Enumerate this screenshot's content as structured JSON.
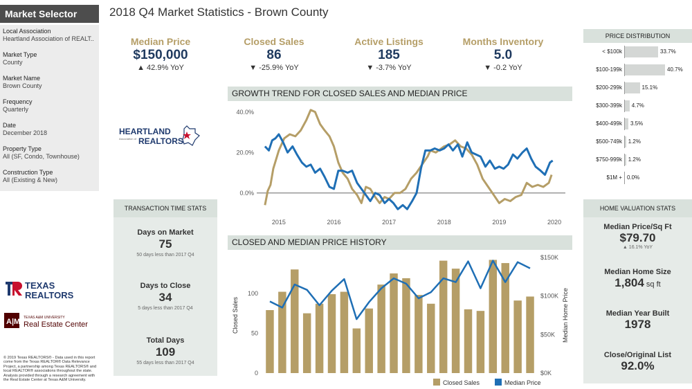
{
  "sidebar": {
    "title": "Market Selector",
    "filters": [
      {
        "label": "Local Association",
        "value": "Heartland Association of REALT.."
      },
      {
        "label": "Market Type",
        "value": "County"
      },
      {
        "label": "Market Name",
        "value": "Brown County"
      },
      {
        "label": "Frequency",
        "value": "Quarterly"
      },
      {
        "label": "Date",
        "value": "December 2018"
      },
      {
        "label": "Property Type",
        "value": "All (SF, Condo, Townhouse)"
      },
      {
        "label": "Construction Type",
        "value": "All (Existing & New)"
      }
    ],
    "heartland_logo": "HEARTLAND REALTORS",
    "texas_realtors_logo": "TEXAS REALTORS",
    "rec_logo_top": "TEXAS A&M UNIVERSITY",
    "rec_logo_main": "Real Estate Center",
    "footnote": "© 2019 Texas REALTORS® - Data used in this report come from the Texas REALTOR® Data Relevance Project, a partnership among Texas REALTORS® and local REALTOR® associations throughout the state. Analysis provided through a research agreement with the Real Estate Center at Texas A&M University."
  },
  "header": {
    "title": "2018 Q4 Market Statistics - Brown County"
  },
  "kpis": [
    {
      "label": "Median Price",
      "value": "$150,000",
      "change": "▲ 42.9% YoY"
    },
    {
      "label": "Closed Sales",
      "value": "86",
      "change": "▼ -25.9% YoY"
    },
    {
      "label": "Active Listings",
      "value": "185",
      "change": "▼ -3.7% YoY"
    },
    {
      "label": "Months Inventory",
      "value": "5.0",
      "change": "▼ -0.2 YoY"
    }
  ],
  "price_distribution": {
    "title": "PRICE DISTRIBUTION",
    "rows": [
      {
        "label": "< $100k",
        "pct": 33.7,
        "text": "33.7%"
      },
      {
        "label": "$100-199k",
        "pct": 40.7,
        "text": "40.7%"
      },
      {
        "label": "$200-299k",
        "pct": 15.1,
        "text": "15.1%"
      },
      {
        "label": "$300-399k",
        "pct": 4.7,
        "text": "4.7%"
      },
      {
        "label": "$400-499k",
        "pct": 3.5,
        "text": "3.5%"
      },
      {
        "label": "$500-749k",
        "pct": 1.2,
        "text": "1.2%"
      },
      {
        "label": "$750-999k",
        "pct": 1.2,
        "text": "1.2%"
      },
      {
        "label": "$1M +",
        "pct": 0.0,
        "text": "0.0%"
      }
    ]
  },
  "transaction_time": {
    "title": "TRANSACTION TIME STATS",
    "items": [
      {
        "label": "Days on Market",
        "value": "75",
        "sub": "50 days less than 2017 Q4"
      },
      {
        "label": "Days to Close",
        "value": "34",
        "sub": "5 days less than 2017 Q4"
      },
      {
        "label": "Total Days",
        "value": "109",
        "sub": "55 days less than 2017 Q4"
      }
    ]
  },
  "home_valuation": {
    "title": "HOME VALUATION STATS",
    "items": [
      {
        "label": "Median Price/Sq Ft",
        "value": "$79.70",
        "unit": "",
        "sub": "▲ 16.1% YoY"
      },
      {
        "label": "Median Home Size",
        "value": "1,804",
        "unit": " sq ft",
        "sub": ""
      },
      {
        "label": "Median Year Built",
        "value": "1978",
        "unit": "",
        "sub": ""
      },
      {
        "label": "Close/Original List",
        "value": "92.0%",
        "unit": "",
        "sub": ""
      }
    ]
  },
  "colors": {
    "gold": "#b59e67",
    "blue": "#1f6fb5",
    "navy": "#1f3a5f",
    "header_bg": "#d9e1dc"
  },
  "chart_data": [
    {
      "type": "line",
      "title": "GROWTH TREND FOR CLOSED SALES AND MEDIAN PRICE",
      "xlabel": "",
      "ylabel": "",
      "x_ticks": [
        "2015",
        "2016",
        "2017",
        "2018",
        "2019",
        "2020"
      ],
      "y_ticks": [
        "0.0%",
        "20.0%",
        "40.0%"
      ],
      "ylim": [
        -10,
        42
      ],
      "xlim": [
        2014.6,
        2020.2
      ],
      "grid": false,
      "series": [
        {
          "color": "#b59e67",
          "x": [
            2014.75,
            2014.8,
            2014.85,
            2014.9,
            2015.0,
            2015.1,
            2015.2,
            2015.3,
            2015.4,
            2015.5,
            2015.58,
            2015.66,
            2015.75,
            2015.83,
            2015.92,
            2016.0,
            2016.08,
            2016.16,
            2016.25,
            2016.33,
            2016.42,
            2016.5,
            2016.58,
            2016.66,
            2016.75,
            2016.83,
            2016.92,
            2017.0,
            2017.1,
            2017.2,
            2017.3,
            2017.4,
            2017.5,
            2017.6,
            2017.7,
            2017.75,
            2017.85,
            2017.95,
            2018.0,
            2018.1,
            2018.2,
            2018.3,
            2018.4,
            2018.5,
            2018.6,
            2018.7,
            2018.8,
            2018.9,
            2019.0,
            2019.1,
            2019.2,
            2019.3,
            2019.4,
            2019.5,
            2019.6,
            2019.7,
            2019.8,
            2019.9,
            2019.95
          ],
          "y": [
            -6,
            1,
            4,
            12,
            21,
            27,
            29,
            28,
            31,
            36,
            41,
            40,
            34,
            31,
            28,
            23,
            15,
            10,
            7,
            2,
            -1,
            -5,
            3,
            2,
            -2,
            -5,
            -2,
            -3,
            0,
            0,
            2,
            7,
            10,
            14,
            18,
            21,
            20,
            22,
            23,
            24,
            26,
            23,
            22,
            19,
            14,
            7,
            3,
            -1,
            -5,
            -3,
            -4,
            -2,
            -1,
            5,
            3,
            4,
            3,
            5,
            9
          ]
        },
        {
          "color": "#1f6fb5",
          "x": [
            2014.75,
            2014.82,
            2014.88,
            2014.94,
            2015.0,
            2015.08,
            2015.16,
            2015.25,
            2015.33,
            2015.42,
            2015.5,
            2015.58,
            2015.66,
            2015.75,
            2015.83,
            2015.92,
            2016.0,
            2016.08,
            2016.16,
            2016.25,
            2016.33,
            2016.42,
            2016.5,
            2016.58,
            2016.66,
            2016.75,
            2016.83,
            2016.92,
            2017.0,
            2017.08,
            2017.16,
            2017.25,
            2017.33,
            2017.42,
            2017.5,
            2017.58,
            2017.66,
            2017.75,
            2017.83,
            2017.92,
            2018.0,
            2018.08,
            2018.16,
            2018.25,
            2018.33,
            2018.42,
            2018.5,
            2018.58,
            2018.66,
            2018.75,
            2018.83,
            2018.92,
            2019.0,
            2019.08,
            2019.16,
            2019.25,
            2019.33,
            2019.42,
            2019.5,
            2019.58,
            2019.66,
            2019.75,
            2019.83,
            2019.92,
            2019.97
          ],
          "y": [
            23,
            21,
            26,
            27,
            29,
            25,
            20,
            23,
            19,
            15,
            13,
            14,
            10,
            12,
            8,
            3,
            2,
            11,
            11,
            10,
            11,
            5,
            2,
            -1,
            -4,
            0,
            -1,
            -5,
            -3,
            -5,
            -8,
            -6,
            -8,
            -4,
            0,
            12,
            21,
            21,
            22,
            21,
            22,
            24,
            21,
            24,
            18,
            25,
            20,
            19,
            18,
            13,
            16,
            12,
            13,
            12,
            14,
            19,
            17,
            20,
            22,
            17,
            13,
            11,
            9,
            15,
            16
          ]
        }
      ]
    },
    {
      "type": "bar",
      "title": "CLOSED AND MEDIAN PRICE HISTORY",
      "xlabel": "",
      "ylabel": "Closed Sales",
      "y2label": "Median Home Price",
      "ylim": [
        0,
        145
      ],
      "y_ticks": [
        "0",
        "50",
        "100"
      ],
      "y2lim": [
        0,
        150000
      ],
      "y2_ticks": [
        "$0K",
        "$50K",
        "$100K",
        "$150K"
      ],
      "legend": [
        "Closed Sales",
        "Median Price"
      ],
      "legend_position": "bottom-right",
      "series": [
        {
          "name": "Closed Sales",
          "type": "bar",
          "color": "#b59e67",
          "values": [
            79,
            102,
            130,
            75,
            87,
            99,
            102,
            56,
            81,
            111,
            125,
            119,
            98,
            87,
            141,
            131,
            80,
            78,
            142,
            138,
            91,
            96
          ]
        },
        {
          "name": "Median Price",
          "type": "line",
          "color": "#1f6fb5",
          "values": [
            93000,
            85000,
            115000,
            108000,
            88000,
            107000,
            122000,
            70000,
            92000,
            110000,
            123000,
            116000,
            97000,
            105000,
            123000,
            118000,
            145000,
            110000,
            146000,
            118000,
            144000,
            136000
          ]
        }
      ]
    }
  ]
}
